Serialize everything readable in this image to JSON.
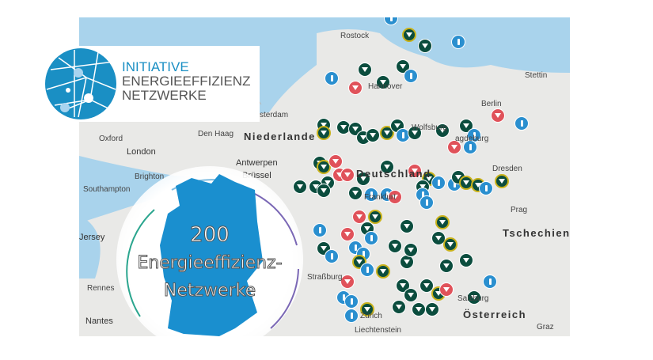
{
  "logo": {
    "line1": "INITIATIVE",
    "line2": "ENERGIEEFFIZIENZ",
    "line3": "NETZWERKE"
  },
  "badge": {
    "count": "200",
    "line1": "Energieeffizienz-",
    "line2": "Netzwerke"
  },
  "map": {
    "labels": {
      "stettin": "Stettin",
      "amsterdam": "sterdam",
      "den_haag": "Den Haag",
      "niederlande": "Niederlande",
      "oxford": "Oxford",
      "london": "London",
      "antwerpen": "Antwerpen",
      "bruessel": "Brüssel",
      "brighton": "Brighton",
      "southampton": "Southampton",
      "deutschland": "Deutschland",
      "prag": "Prag",
      "tschechien": "Tschechien",
      "rennes": "Rennes",
      "strassburg": "Straßburg",
      "nantes": "Nantes",
      "oesterreich": "Österreich",
      "salzburg": "Salzburg",
      "liechtenstein": "Liechtenstein",
      "graz": "Graz",
      "hannover": "Hannover",
      "wolfsburg": "Wolfsburg",
      "magdeburg": "agdeburg",
      "berlin": "Berlin",
      "dresden": "Dresden",
      "frankfurt": "Frankfurt",
      "zuerich": "Zürich",
      "jersey": "Jersey",
      "rostock": "Rostock"
    },
    "colors": {
      "sea": "#a9d3ec",
      "land": "#e9e9e7",
      "network": "#0b4d3e",
      "network_highlight": "#c9b21a",
      "network_red": "#e0525a",
      "info": "#2a8fcf",
      "brand": "#1a8fc4"
    }
  }
}
